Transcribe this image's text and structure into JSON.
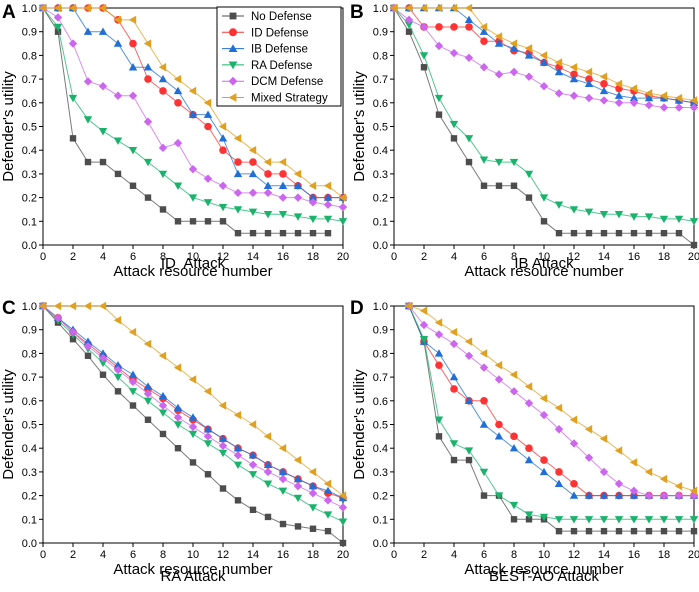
{
  "legend": {
    "entries": [
      {
        "name": "No Defense",
        "color": "#4d4d4d",
        "marker": "square"
      },
      {
        "name": "ID Defense",
        "color": "#ff3333",
        "marker": "circle"
      },
      {
        "name": "IB Defense",
        "color": "#1f6fd6",
        "marker": "triangle-up"
      },
      {
        "name": "RA Defense",
        "color": "#19b36b",
        "marker": "triangle-down"
      },
      {
        "name": "DCM Defense",
        "color": "#cc66ee",
        "marker": "diamond"
      },
      {
        "name": "Mixed Strategy",
        "color": "#e0a020",
        "marker": "triangle-left"
      }
    ]
  },
  "chart_data": [
    {
      "panel": "A",
      "type": "line",
      "title": "ID  Attack",
      "xlabel": "Attack resource number",
      "ylabel": "Defender's utility",
      "xlim": [
        0,
        20
      ],
      "ylim": [
        0,
        1.0
      ],
      "xticks": [
        0,
        2,
        4,
        6,
        8,
        10,
        12,
        14,
        16,
        18,
        20
      ],
      "yticks": [
        0.0,
        0.1,
        0.2,
        0.3,
        0.4,
        0.5,
        0.6,
        0.7,
        0.8,
        0.9,
        1.0
      ],
      "x": [
        0,
        1,
        2,
        3,
        4,
        5,
        6,
        7,
        8,
        9,
        10,
        11,
        12,
        13,
        14,
        15,
        16,
        17,
        18,
        19,
        20
      ],
      "series": [
        {
          "name": "No Defense",
          "values": [
            1.0,
            0.9,
            0.45,
            0.35,
            0.35,
            0.3,
            0.25,
            0.2,
            0.15,
            0.1,
            0.1,
            0.1,
            0.1,
            0.05,
            0.05,
            0.05,
            0.05,
            0.05,
            0.05,
            0.05,
            null
          ]
        },
        {
          "name": "ID Defense",
          "values": [
            1.0,
            1.0,
            1.0,
            1.0,
            1.0,
            0.95,
            0.85,
            0.7,
            0.65,
            0.6,
            0.55,
            0.5,
            0.4,
            0.35,
            0.35,
            0.3,
            0.3,
            0.25,
            0.2,
            0.2,
            0.2
          ]
        },
        {
          "name": "IB Defense",
          "values": [
            1.0,
            1.0,
            1.0,
            0.9,
            0.9,
            0.85,
            0.75,
            0.75,
            0.7,
            0.65,
            0.55,
            0.55,
            0.45,
            0.3,
            0.3,
            0.25,
            0.25,
            0.25,
            0.2,
            0.2,
            0.2
          ]
        },
        {
          "name": "RA Defense",
          "values": [
            1.0,
            0.92,
            0.62,
            0.53,
            0.48,
            0.44,
            0.4,
            0.35,
            0.3,
            0.25,
            0.2,
            0.18,
            0.16,
            0.15,
            0.14,
            0.13,
            0.13,
            0.12,
            0.11,
            0.11,
            0.1
          ]
        },
        {
          "name": "DCM Defense",
          "values": [
            1.0,
            0.96,
            0.85,
            0.69,
            0.67,
            0.63,
            0.63,
            0.52,
            0.41,
            0.43,
            0.32,
            0.28,
            0.25,
            0.22,
            0.22,
            0.22,
            0.2,
            0.2,
            0.18,
            0.17,
            0.16
          ]
        },
        {
          "name": "Mixed Strategy",
          "values": [
            1.0,
            1.0,
            1.0,
            1.0,
            1.0,
            0.95,
            0.95,
            0.85,
            0.75,
            0.7,
            0.65,
            0.6,
            0.5,
            0.45,
            0.4,
            0.35,
            0.35,
            0.3,
            0.25,
            0.25,
            0.2
          ]
        }
      ]
    },
    {
      "panel": "B",
      "type": "line",
      "title": "IB Attack",
      "xlabel": "Attack resource number",
      "ylabel": "Defender's utility",
      "xlim": [
        0,
        20
      ],
      "ylim": [
        0,
        1.0
      ],
      "xticks": [
        0,
        2,
        4,
        6,
        8,
        10,
        12,
        14,
        16,
        18,
        20
      ],
      "yticks": [
        0.0,
        0.1,
        0.2,
        0.3,
        0.4,
        0.5,
        0.6,
        0.7,
        0.8,
        0.9,
        1.0
      ],
      "x": [
        0,
        1,
        2,
        3,
        4,
        5,
        6,
        7,
        8,
        9,
        10,
        11,
        12,
        13,
        14,
        15,
        16,
        17,
        18,
        19,
        20
      ],
      "series": [
        {
          "name": "No Defense",
          "values": [
            1.0,
            0.9,
            0.75,
            0.55,
            0.45,
            0.35,
            0.25,
            0.25,
            0.25,
            0.2,
            0.1,
            0.05,
            0.05,
            0.05,
            0.05,
            0.05,
            0.05,
            0.05,
            0.05,
            0.05,
            0.0
          ]
        },
        {
          "name": "ID Defense",
          "values": [
            1.0,
            1.0,
            0.92,
            0.92,
            0.92,
            0.92,
            0.86,
            0.86,
            0.82,
            0.81,
            0.77,
            0.75,
            0.72,
            0.7,
            0.68,
            0.66,
            0.65,
            0.63,
            0.62,
            0.61,
            0.6
          ]
        },
        {
          "name": "IB Defense",
          "values": [
            1.0,
            1.0,
            1.0,
            1.0,
            1.0,
            0.95,
            0.9,
            0.85,
            0.83,
            0.8,
            0.77,
            0.73,
            0.7,
            0.68,
            0.65,
            0.63,
            0.62,
            0.62,
            0.62,
            0.61,
            0.6
          ]
        },
        {
          "name": "RA Defense",
          "values": [
            1.0,
            0.93,
            0.8,
            0.62,
            0.51,
            0.45,
            0.36,
            0.35,
            0.35,
            0.3,
            0.2,
            0.17,
            0.15,
            0.14,
            0.13,
            0.13,
            0.12,
            0.12,
            0.11,
            0.11,
            0.1
          ]
        },
        {
          "name": "DCM Defense",
          "values": [
            1.0,
            0.95,
            0.92,
            0.84,
            0.81,
            0.79,
            0.75,
            0.72,
            0.73,
            0.71,
            0.67,
            0.64,
            0.63,
            0.62,
            0.61,
            0.6,
            0.6,
            0.59,
            0.58,
            0.58,
            0.58
          ]
        },
        {
          "name": "Mixed Strategy",
          "values": [
            1.0,
            1.0,
            1.0,
            1.0,
            1.0,
            1.0,
            0.92,
            0.88,
            0.85,
            0.83,
            0.8,
            0.77,
            0.75,
            0.73,
            0.71,
            0.68,
            0.66,
            0.64,
            0.63,
            0.62,
            0.61
          ]
        }
      ]
    },
    {
      "panel": "C",
      "type": "line",
      "title": "RA Attack",
      "xlabel": "Attack resource number",
      "ylabel": "Defender's utility",
      "xlim": [
        0,
        20
      ],
      "ylim": [
        0,
        1.0
      ],
      "xticks": [
        0,
        2,
        4,
        6,
        8,
        10,
        12,
        14,
        16,
        18,
        20
      ],
      "yticks": [
        0.0,
        0.1,
        0.2,
        0.3,
        0.4,
        0.5,
        0.6,
        0.7,
        0.8,
        0.9,
        1.0
      ],
      "x": [
        0,
        1,
        2,
        3,
        4,
        5,
        6,
        7,
        8,
        9,
        10,
        11,
        12,
        13,
        14,
        15,
        16,
        17,
        18,
        19,
        20
      ],
      "series": [
        {
          "name": "No Defense",
          "values": [
            1.0,
            0.93,
            0.86,
            0.79,
            0.71,
            0.64,
            0.58,
            0.52,
            0.46,
            0.4,
            0.34,
            0.29,
            0.23,
            0.18,
            0.14,
            0.11,
            0.08,
            0.07,
            0.06,
            0.05,
            0.0
          ]
        },
        {
          "name": "ID Defense",
          "values": [
            1.0,
            0.95,
            0.89,
            0.84,
            0.79,
            0.74,
            0.69,
            0.65,
            0.61,
            0.56,
            0.52,
            0.48,
            0.44,
            0.4,
            0.37,
            0.33,
            0.3,
            0.27,
            0.24,
            0.21,
            0.19
          ]
        },
        {
          "name": "IB Defense",
          "values": [
            1.0,
            0.95,
            0.9,
            0.85,
            0.8,
            0.75,
            0.71,
            0.66,
            0.62,
            0.57,
            0.53,
            0.48,
            0.44,
            0.4,
            0.37,
            0.33,
            0.3,
            0.27,
            0.24,
            0.22,
            0.19
          ]
        },
        {
          "name": "RA Defense",
          "values": [
            1.0,
            0.94,
            0.88,
            0.82,
            0.76,
            0.7,
            0.64,
            0.6,
            0.55,
            0.5,
            0.46,
            0.42,
            0.38,
            0.33,
            0.29,
            0.25,
            0.22,
            0.19,
            0.15,
            0.12,
            0.09
          ]
        },
        {
          "name": "DCM Defense",
          "values": [
            1.0,
            0.95,
            0.89,
            0.83,
            0.78,
            0.73,
            0.68,
            0.63,
            0.58,
            0.53,
            0.49,
            0.45,
            0.41,
            0.37,
            0.33,
            0.3,
            0.27,
            0.24,
            0.21,
            0.18,
            0.15
          ]
        },
        {
          "name": "Mixed Strategy",
          "values": [
            1.0,
            1.0,
            1.0,
            1.0,
            1.0,
            0.94,
            0.89,
            0.84,
            0.79,
            0.74,
            0.69,
            0.64,
            0.58,
            0.54,
            0.5,
            0.45,
            0.4,
            0.35,
            0.3,
            0.25,
            0.2
          ]
        }
      ]
    },
    {
      "panel": "D",
      "type": "line",
      "title": "BEST-AO Attack",
      "xlabel": "Attack resource number",
      "ylabel": "Defender's utility",
      "xlim": [
        0,
        20
      ],
      "ylim": [
        0,
        1.0
      ],
      "xticks": [
        0,
        2,
        4,
        6,
        8,
        10,
        12,
        14,
        16,
        18,
        20
      ],
      "yticks": [
        0.0,
        0.1,
        0.2,
        0.3,
        0.4,
        0.5,
        0.6,
        0.7,
        0.8,
        0.9,
        1.0
      ],
      "x": [
        1,
        2,
        3,
        4,
        5,
        6,
        7,
        8,
        9,
        10,
        11,
        12,
        13,
        14,
        15,
        16,
        17,
        18,
        19,
        20
      ],
      "series": [
        {
          "name": "No Defense",
          "values": [
            1.0,
            0.85,
            0.45,
            0.35,
            0.35,
            0.2,
            0.2,
            0.1,
            0.1,
            0.1,
            0.05,
            0.05,
            0.05,
            0.05,
            0.05,
            0.05,
            0.05,
            0.05,
            0.05,
            0.05
          ]
        },
        {
          "name": "ID Defense",
          "values": [
            1.0,
            0.85,
            0.75,
            0.65,
            0.6,
            0.6,
            0.5,
            0.45,
            0.4,
            0.35,
            0.3,
            0.25,
            0.2,
            0.2,
            0.2,
            0.2,
            0.2,
            0.2,
            0.2,
            0.2
          ]
        },
        {
          "name": "IB Defense",
          "values": [
            1.0,
            0.85,
            0.8,
            0.7,
            0.6,
            0.5,
            0.45,
            0.4,
            0.35,
            0.3,
            0.25,
            0.2,
            0.2,
            0.2,
            0.2,
            0.2,
            0.2,
            0.2,
            0.2,
            0.2
          ]
        },
        {
          "name": "RA Defense",
          "values": [
            1.0,
            0.86,
            0.52,
            0.42,
            0.39,
            0.3,
            0.2,
            0.16,
            0.12,
            0.11,
            0.1,
            0.1,
            0.1,
            0.1,
            0.1,
            0.1,
            0.1,
            0.1,
            0.1,
            0.1
          ]
        },
        {
          "name": "DCM Defense",
          "values": [
            1.0,
            0.92,
            0.88,
            0.84,
            0.79,
            0.74,
            0.69,
            0.64,
            0.59,
            0.54,
            0.48,
            0.42,
            0.36,
            0.3,
            0.25,
            0.22,
            0.2,
            0.2,
            0.2,
            0.2
          ]
        },
        {
          "name": "Mixed Strategy",
          "values": [
            1.0,
            0.98,
            0.93,
            0.89,
            0.85,
            0.8,
            0.75,
            0.71,
            0.66,
            0.61,
            0.57,
            0.52,
            0.48,
            0.44,
            0.39,
            0.34,
            0.3,
            0.27,
            0.24,
            0.22
          ]
        }
      ]
    }
  ]
}
